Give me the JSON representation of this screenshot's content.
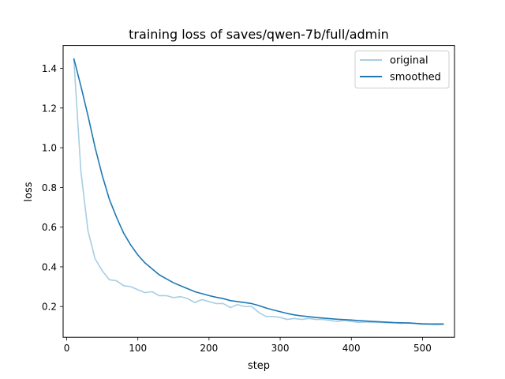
{
  "chart_data": {
    "type": "line",
    "title": "training loss of saves/qwen-7b/full/admin",
    "xlabel": "step",
    "ylabel": "loss",
    "xlim": [
      -5,
      545
    ],
    "ylim": [
      0.045,
      1.515
    ],
    "xticks": [
      0,
      100,
      200,
      300,
      400,
      500
    ],
    "xtick_labels": [
      "0",
      "100",
      "200",
      "300",
      "400",
      "500"
    ],
    "yticks": [
      0.2,
      0.4,
      0.6,
      0.8,
      1.0,
      1.2,
      1.4
    ],
    "ytick_labels": [
      "0.2",
      "0.4",
      "0.6",
      "0.8",
      "1.0",
      "1.2",
      "1.4"
    ],
    "grid": false,
    "legend_position": "top-right",
    "x": [
      10,
      20,
      30,
      40,
      50,
      60,
      70,
      80,
      90,
      100,
      110,
      120,
      130,
      140,
      150,
      160,
      170,
      180,
      190,
      200,
      210,
      220,
      230,
      240,
      250,
      260,
      270,
      280,
      290,
      300,
      310,
      320,
      330,
      340,
      350,
      360,
      370,
      380,
      390,
      400,
      410,
      420,
      430,
      440,
      450,
      460,
      470,
      480,
      490,
      500,
      510,
      520,
      530
    ],
    "series": [
      {
        "name": "original",
        "color": "#a6cee3",
        "values": [
          1.45,
          0.88,
          0.58,
          0.44,
          0.38,
          0.335,
          0.33,
          0.305,
          0.3,
          0.285,
          0.27,
          0.275,
          0.255,
          0.255,
          0.245,
          0.25,
          0.24,
          0.22,
          0.235,
          0.225,
          0.215,
          0.215,
          0.195,
          0.21,
          0.2,
          0.2,
          0.17,
          0.15,
          0.15,
          0.145,
          0.135,
          0.14,
          0.135,
          0.14,
          0.135,
          0.135,
          0.13,
          0.125,
          0.13,
          0.125,
          0.12,
          0.122,
          0.12,
          0.12,
          0.118,
          0.118,
          0.115,
          0.118,
          0.115,
          0.11,
          0.11,
          0.108,
          0.11
        ]
      },
      {
        "name": "smoothed",
        "color": "#1f78b4",
        "values": [
          1.45,
          1.31,
          1.16,
          1.0,
          0.86,
          0.74,
          0.65,
          0.57,
          0.51,
          0.46,
          0.42,
          0.39,
          0.36,
          0.34,
          0.32,
          0.305,
          0.29,
          0.275,
          0.265,
          0.255,
          0.247,
          0.24,
          0.23,
          0.225,
          0.22,
          0.215,
          0.205,
          0.193,
          0.183,
          0.174,
          0.165,
          0.158,
          0.153,
          0.149,
          0.145,
          0.142,
          0.139,
          0.136,
          0.134,
          0.132,
          0.129,
          0.127,
          0.125,
          0.123,
          0.121,
          0.119,
          0.118,
          0.117,
          0.115,
          0.113,
          0.112,
          0.112,
          0.112
        ]
      }
    ]
  }
}
